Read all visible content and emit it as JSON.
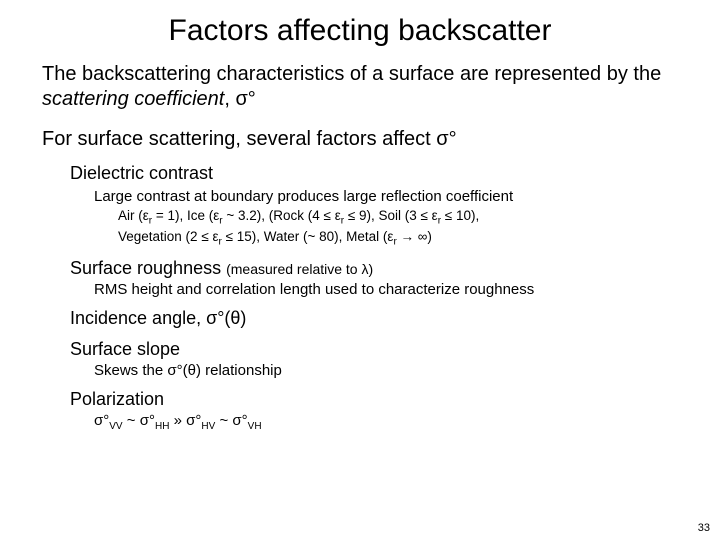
{
  "title": "Factors affecting backscatter",
  "intro_a": "The backscattering characteristics of a surface are represented by the ",
  "intro_b": "scattering coefficient",
  "intro_c": ", σ°",
  "line2": "For surface scattering, several factors affect σ°",
  "dielectric_heading": "Dielectric contrast",
  "dielectric_sub": "Large contrast at boundary produces large reflection coefficient",
  "dielectric_vals_a": "Air (ε",
  "dielectric_vals_b": " = 1), Ice (ε",
  "dielectric_vals_c": " ~ 3.2), (Rock (4 ≤ ε",
  "dielectric_vals_d": " ≤ 9), Soil (3 ≤ ε",
  "dielectric_vals_e": " ≤ 10),",
  "dielectric_vals_f": "Vegetation (2 ≤ ε",
  "dielectric_vals_g": " ≤ 15), Water (~ 80), Metal (ε",
  "dielectric_vals_h": " → ∞)",
  "sub_r": "r",
  "roughness_a": "Surface roughness ",
  "roughness_b": "(measured relative to λ)",
  "roughness_sub": "RMS height and correlation length used to characterize roughness",
  "incidence": "Incidence angle, σ°(θ)",
  "slope": "Surface slope",
  "slope_sub": "Skews the σ°(θ) relationship",
  "polarization": "Polarization",
  "pol_a": "σ°",
  "pol_vv": "VV",
  "pol_tilde": " ~ ",
  "pol_hh": "HH",
  "pol_gg": " » ",
  "pol_hv": "HV",
  "pol_vh": "VH",
  "page": "33"
}
